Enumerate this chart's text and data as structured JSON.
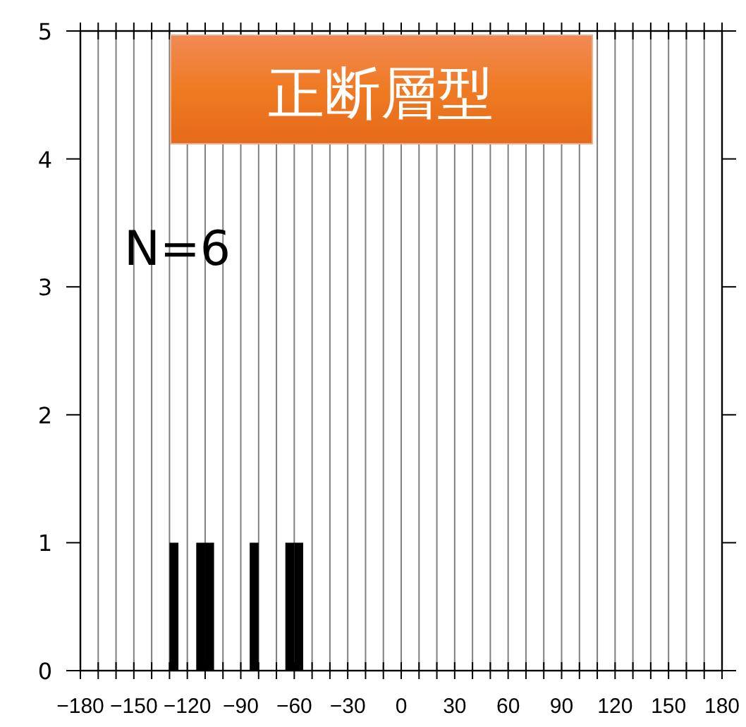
{
  "chart_data": {
    "type": "histogram",
    "title": "正断層型",
    "annotations": [
      "N=6"
    ],
    "bins": [
      -130,
      -125,
      -120,
      -115,
      -110,
      -105,
      -100,
      -95,
      -90,
      -85,
      -80,
      -75,
      -70,
      -65,
      -60,
      -55
    ],
    "values": [
      1,
      0,
      0,
      1,
      1,
      0,
      0,
      0,
      0,
      1,
      0,
      0,
      0,
      1,
      1
    ],
    "color": "#000000",
    "xlim": [
      -180,
      180
    ],
    "xticks": [
      -180,
      {
        "value": -170,
        "label": null
      },
      {
        "value": -160,
        "label": null
      },
      -150,
      {
        "value": -140,
        "label": null
      },
      {
        "value": -130,
        "label": null
      },
      -120,
      {
        "value": -110,
        "label": null
      },
      {
        "value": -100,
        "label": null
      },
      -90,
      {
        "value": -80,
        "label": null
      },
      {
        "value": -70,
        "label": null
      },
      -60,
      {
        "value": -50,
        "label": null
      },
      {
        "value": -40,
        "label": null
      },
      -30,
      {
        "value": -20,
        "label": null
      },
      {
        "value": -10,
        "label": null
      },
      0,
      {
        "value": 10,
        "label": null
      },
      {
        "value": 20,
        "label": null
      },
      30,
      {
        "value": 40,
        "label": null
      },
      {
        "value": 50,
        "label": null
      },
      60,
      {
        "value": 70,
        "label": null
      },
      {
        "value": 80,
        "label": null
      },
      90,
      {
        "value": 100,
        "label": null
      },
      {
        "value": 110,
        "label": null
      },
      120,
      {
        "value": 130,
        "label": null
      },
      {
        "value": 140,
        "label": null
      },
      150,
      {
        "value": 160,
        "label": null
      },
      {
        "value": 170,
        "label": null
      },
      180
    ],
    "ylim": [
      0,
      5
    ],
    "yticks": [
      0,
      1,
      2,
      3,
      4,
      5
    ],
    "grid": "x"
  }
}
